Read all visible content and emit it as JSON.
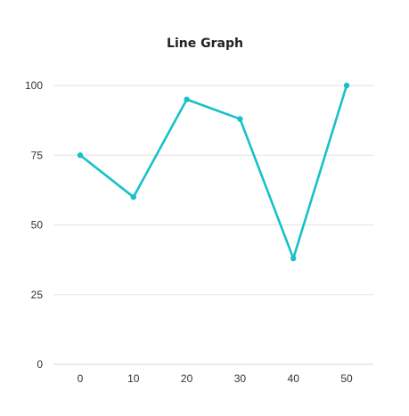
{
  "chart_data": {
    "type": "line",
    "title": "Line Graph",
    "xlabel": "",
    "ylabel": "",
    "x": [
      0,
      10,
      20,
      30,
      40,
      50
    ],
    "x_tick_labels": [
      "0",
      "10",
      "20",
      "30",
      "40",
      "50"
    ],
    "y_ticks": [
      0,
      25,
      50,
      75,
      100
    ],
    "y_tick_labels": [
      "0",
      "25",
      "50",
      "75",
      "100"
    ],
    "ylim": [
      0,
      100
    ],
    "grid": true,
    "legend": false,
    "series": [
      {
        "values": [
          75,
          60,
          95,
          88,
          38,
          100
        ],
        "color": "#17c1c9"
      }
    ]
  }
}
